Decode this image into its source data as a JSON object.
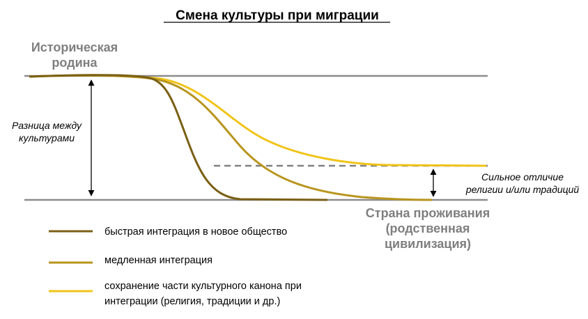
{
  "title": "Смена культуры при миграции",
  "labels": {
    "homeland_line1": "Историческая",
    "homeland_line2": "родина",
    "difference_line1": "Разница между",
    "difference_line2": "культурами",
    "strong_diff_line1": "Сильное отличие",
    "strong_diff_line2": "религии и/или традиций",
    "residence_line1": "Страна проживания",
    "residence_line2": "(родственная",
    "residence_line3": "цивилизация)"
  },
  "legend": [
    {
      "label_line1": "быстрая интеграция в новое общество",
      "label_line2": "",
      "color": "#7a5f14"
    },
    {
      "label_line1": "медленная интеграция",
      "label_line2": "",
      "color": "#b8951e"
    },
    {
      "label_line1": "сохранение части культурного канона при",
      "label_line2": "интеграции (религия, традиции и др.)",
      "color": "#f0c419"
    }
  ],
  "colors": {
    "reference_lines": "#8c8c8c",
    "dashed_line": "#808080",
    "arrows": "#000000"
  }
}
